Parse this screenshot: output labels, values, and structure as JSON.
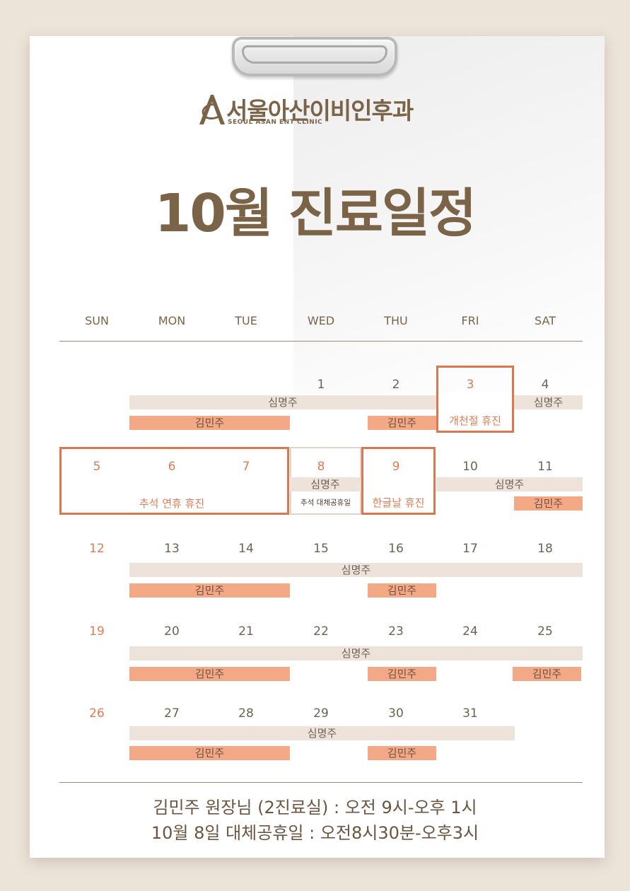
{
  "clinic": {
    "name_kor": "서울아산이비인후과",
    "name_eng": "SEOUL ASAN ENT CLINIC"
  },
  "title": "10월 진료일정",
  "weekdays": [
    "SUN",
    "MON",
    "TUE",
    "WED",
    "THU",
    "FRI",
    "SAT"
  ],
  "weeks": [
    [
      null,
      null,
      null,
      1,
      2,
      3,
      4
    ],
    [
      5,
      6,
      7,
      8,
      9,
      10,
      11
    ],
    [
      12,
      13,
      14,
      15,
      16,
      17,
      18
    ],
    [
      19,
      20,
      21,
      22,
      23,
      24,
      25
    ],
    [
      26,
      27,
      28,
      29,
      30,
      31,
      null
    ]
  ],
  "holiday_dates": [
    3,
    5,
    6,
    7,
    8,
    9,
    12,
    19,
    26
  ],
  "doctors": {
    "shim": "심명주",
    "kim": "김민주"
  },
  "holidays": {
    "foundation_day": "개천절 휴진",
    "chuseok": "추석 연휴 휴진",
    "substitute": "추석 대체공휴일",
    "hangul_day": "한글날 휴진"
  },
  "colors": {
    "brown": "#7a6346",
    "holiday": "#e07c53",
    "shim_bar": "#ede3da",
    "kim_bar": "#f4a986"
  },
  "footer": {
    "line1": "김민주 원장님 (2진료실) : 오전 9시-오후 1시",
    "line2": "10월 8일 대체공휴일 : 오전8시30분-오후3시"
  }
}
